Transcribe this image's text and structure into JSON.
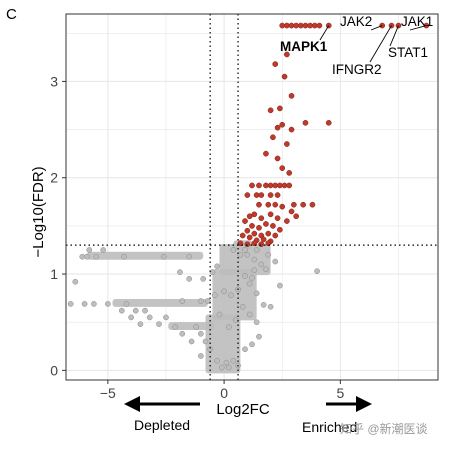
{
  "panel_letter": "C",
  "watermark": "知乎 @新潮医谈",
  "direction": {
    "depleted": "Depleted",
    "enriched": "Enriched"
  },
  "colors": {
    "significant": "#c0392b",
    "background": "#bdbdbd",
    "panel": "#ffffff",
    "grid": "#e6e6e6"
  },
  "chart_data": {
    "type": "scatter",
    "xlabel": "Log2FC",
    "ylabel": "−Log10(FDR)",
    "xlim": [
      -6.8,
      9.2
    ],
    "ylim": [
      -0.1,
      3.7
    ],
    "xticks": [
      -5,
      0,
      5
    ],
    "yticks": [
      0,
      1,
      2,
      3
    ],
    "grid": true,
    "thresholds": {
      "log2fc_vertical": [
        -0.6,
        0.6
      ],
      "fdr_horizontal": 1.3
    },
    "series": [
      {
        "significant": true,
        "points": [
          [
            2.5,
            3.58
          ],
          [
            2.7,
            3.58
          ],
          [
            2.9,
            3.58
          ],
          [
            3.1,
            3.58
          ],
          [
            3.3,
            3.58
          ],
          [
            3.5,
            3.58
          ],
          [
            3.7,
            3.58
          ],
          [
            3.9,
            3.58
          ],
          [
            4.1,
            3.58
          ],
          [
            4.5,
            3.58
          ],
          [
            6.8,
            3.58
          ],
          [
            7.2,
            3.58
          ],
          [
            7.5,
            3.58
          ],
          [
            8.7,
            3.58
          ],
          [
            2.7,
            3.28
          ],
          [
            2.2,
            3.18
          ],
          [
            2.6,
            3.05
          ],
          [
            2.9,
            2.85
          ],
          [
            2.4,
            2.72
          ],
          [
            2.0,
            2.7
          ],
          [
            2.5,
            2.55
          ],
          [
            2.3,
            2.52
          ],
          [
            2.9,
            2.5
          ],
          [
            2.1,
            2.42
          ],
          [
            2.7,
            2.35
          ],
          [
            3.5,
            2.57
          ],
          [
            4.5,
            2.57
          ],
          [
            1.8,
            2.25
          ],
          [
            2.3,
            2.2
          ],
          [
            2.5,
            2.1
          ],
          [
            2.8,
            2.05
          ],
          [
            1.2,
            1.92
          ],
          [
            1.5,
            1.92
          ],
          [
            1.8,
            1.92
          ],
          [
            2.0,
            1.92
          ],
          [
            2.2,
            1.92
          ],
          [
            2.4,
            1.92
          ],
          [
            2.6,
            1.92
          ],
          [
            2.8,
            1.92
          ],
          [
            1.0,
            1.82
          ],
          [
            1.4,
            1.82
          ],
          [
            1.6,
            1.82
          ],
          [
            2.0,
            1.82
          ],
          [
            2.3,
            1.82
          ],
          [
            1.5,
            1.72
          ],
          [
            1.9,
            1.72
          ],
          [
            2.2,
            1.72
          ],
          [
            2.5,
            1.7
          ],
          [
            3.0,
            1.72
          ],
          [
            3.4,
            1.72
          ],
          [
            3.8,
            1.72
          ],
          [
            2.9,
            1.65
          ],
          [
            1.1,
            1.6
          ],
          [
            1.3,
            1.62
          ],
          [
            1.6,
            1.58
          ],
          [
            2.0,
            1.62
          ],
          [
            2.3,
            1.58
          ],
          [
            2.7,
            1.55
          ],
          [
            3.1,
            1.6
          ],
          [
            0.9,
            1.55
          ],
          [
            1.2,
            1.5
          ],
          [
            1.5,
            1.48
          ],
          [
            1.8,
            1.52
          ],
          [
            2.1,
            1.5
          ],
          [
            2.4,
            1.46
          ],
          [
            1.0,
            1.45
          ],
          [
            1.3,
            1.42
          ],
          [
            1.6,
            1.4
          ],
          [
            1.9,
            1.42
          ],
          [
            2.2,
            1.4
          ],
          [
            0.8,
            1.4
          ],
          [
            1.1,
            1.38
          ],
          [
            1.4,
            1.35
          ],
          [
            1.7,
            1.36
          ],
          [
            2.0,
            1.34
          ],
          [
            0.7,
            1.32
          ],
          [
            1.0,
            1.31
          ],
          [
            1.3,
            1.32
          ],
          [
            1.6,
            1.31
          ],
          [
            1.9,
            1.32
          ]
        ]
      },
      {
        "significant": false,
        "points": [
          [
            -6.1,
            1.18
          ],
          [
            -5.9,
            1.18
          ],
          [
            -5.5,
            1.18
          ],
          [
            -5.8,
            1.25
          ],
          [
            -5.2,
            1.25
          ],
          [
            -6.4,
            0.92
          ],
          [
            -4.3,
            1.18
          ],
          [
            -6.6,
            0.69
          ],
          [
            -6.0,
            0.69
          ],
          [
            -5.6,
            0.69
          ],
          [
            -5.0,
            0.69
          ],
          [
            -4.2,
            0.69
          ],
          [
            -4.4,
            0.62
          ],
          [
            -3.8,
            0.62
          ],
          [
            -3.4,
            0.62
          ],
          [
            -4.0,
            0.55
          ],
          [
            -3.2,
            0.55
          ],
          [
            -2.5,
            0.55
          ],
          [
            -3.6,
            0.48
          ],
          [
            -2.8,
            0.48
          ],
          [
            -2.1,
            0.45
          ],
          [
            -1.2,
            0.45
          ],
          [
            -1.8,
            0.38
          ],
          [
            -1.0,
            0.38
          ],
          [
            -1.4,
            0.3
          ],
          [
            -0.8,
            0.3
          ],
          [
            -0.6,
            0.22
          ],
          [
            -1.0,
            0.15
          ],
          [
            -0.3,
            0.1
          ],
          [
            0.1,
            0.08
          ],
          [
            0.4,
            0.1
          ],
          [
            0.2,
            0.03
          ],
          [
            -0.1,
            0.03
          ],
          [
            0.6,
            0.05
          ],
          [
            -0.5,
            1.02
          ],
          [
            -0.3,
            1.08
          ],
          [
            -0.9,
            0.95
          ],
          [
            -1.5,
            0.95
          ],
          [
            -1.9,
            1.02
          ],
          [
            -0.4,
            0.78
          ],
          [
            -0.7,
            0.72
          ],
          [
            -1.8,
            0.72
          ],
          [
            -1.0,
            0.72
          ],
          [
            0.0,
            0.82
          ],
          [
            0.3,
            0.78
          ],
          [
            0.6,
            0.84
          ],
          [
            0.9,
            0.98
          ],
          [
            1.2,
            0.96
          ],
          [
            0.8,
            0.66
          ],
          [
            1.1,
            0.58
          ],
          [
            0.5,
            0.52
          ],
          [
            0.2,
            0.45
          ],
          [
            1.4,
            0.5
          ],
          [
            1.5,
            0.35
          ],
          [
            1.2,
            0.27
          ],
          [
            0.9,
            0.22
          ],
          [
            1.7,
            0.68
          ],
          [
            2.0,
            0.66
          ],
          [
            1.3,
            1.04
          ],
          [
            1.6,
            1.1
          ],
          [
            1.3,
            1.15
          ],
          [
            1.0,
            1.2
          ],
          [
            1.8,
            1.05
          ],
          [
            2.2,
            1.13
          ],
          [
            0.7,
            1.2
          ],
          [
            1.1,
            0.9
          ],
          [
            1.4,
            0.8
          ],
          [
            4.0,
            1.03
          ],
          [
            2.4,
            0.88
          ],
          [
            -0.2,
            0.58
          ],
          [
            0.9,
            1.25
          ],
          [
            1.4,
            1.25
          ],
          [
            -2.6,
            1.18
          ],
          [
            -1.5,
            1.18
          ],
          [
            0.4,
            1.25
          ],
          [
            1.9,
            1.2
          ]
        ]
      }
    ],
    "annotations": [
      {
        "label": "JAK2",
        "x": 6.8,
        "y": 3.58,
        "bold": false
      },
      {
        "label": "JAK1",
        "x": 8.7,
        "y": 3.58,
        "bold": false
      },
      {
        "label": "STAT1",
        "x": 7.5,
        "y": 3.58,
        "bold": false
      },
      {
        "label": "MAPK1",
        "x": 4.5,
        "y": 3.58,
        "bold": true
      },
      {
        "label": "IFNGR2",
        "x": 7.2,
        "y": 3.58,
        "bold": false
      }
    ]
  }
}
